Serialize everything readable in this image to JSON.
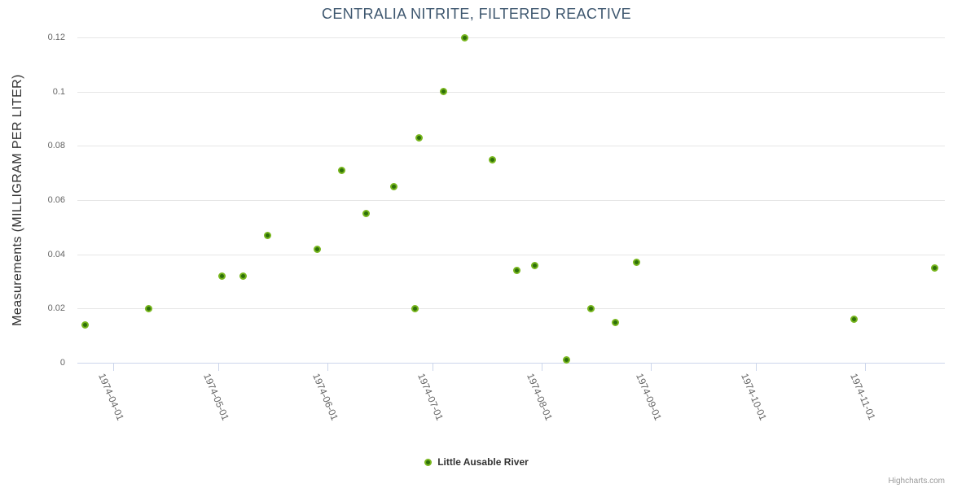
{
  "credits": "Highcharts.com",
  "colors": {
    "title": "#3e576f",
    "axis_line": "#ccd6eb",
    "gridline": "#e6e6e6",
    "labels": "#666666",
    "marker_fill": "#2e7009",
    "marker_ring": "#77b51d"
  },
  "chart_data": {
    "type": "scatter",
    "title": "CENTRALIA NITRITE, FILTERED REACTIVE",
    "xlabel": "",
    "ylabel": "Measurements (MILLIGRAM PER LITER)",
    "ylim": [
      0,
      0.12
    ],
    "yticks": [
      0,
      0.02,
      0.04,
      0.06,
      0.08,
      0.1,
      0.12
    ],
    "xlim": [
      "1974-03-21T19:00:00Z",
      "1974-11-23T19:00:00Z"
    ],
    "xticks": [
      "1974-04-01",
      "1974-05-01",
      "1974-06-01",
      "1974-07-01",
      "1974-08-01",
      "1974-09-01",
      "1974-10-01",
      "1974-11-01"
    ],
    "grid": true,
    "legend_position": "bottom",
    "series": [
      {
        "name": "Little Ausable River",
        "points": [
          [
            "1974-03-24",
            0.014
          ],
          [
            "1974-04-11",
            0.02
          ],
          [
            "1974-05-02",
            0.032
          ],
          [
            "1974-05-08",
            0.032
          ],
          [
            "1974-05-15",
            0.047
          ],
          [
            "1974-05-29",
            0.042
          ],
          [
            "1974-06-05",
            0.071
          ],
          [
            "1974-06-12",
            0.055
          ],
          [
            "1974-06-20",
            0.065
          ],
          [
            "1974-06-26",
            0.02
          ],
          [
            "1974-06-27",
            0.083
          ],
          [
            "1974-07-04",
            0.1
          ],
          [
            "1974-07-10",
            0.12
          ],
          [
            "1974-07-18",
            0.075
          ],
          [
            "1974-07-25",
            0.034
          ],
          [
            "1974-07-30",
            0.036
          ],
          [
            "1974-08-08",
            0.001
          ],
          [
            "1974-08-15",
            0.02
          ],
          [
            "1974-08-22",
            0.015
          ],
          [
            "1974-08-28",
            0.037
          ],
          [
            "1974-10-29",
            0.016
          ],
          [
            "1974-11-21",
            0.035
          ]
        ]
      }
    ]
  }
}
